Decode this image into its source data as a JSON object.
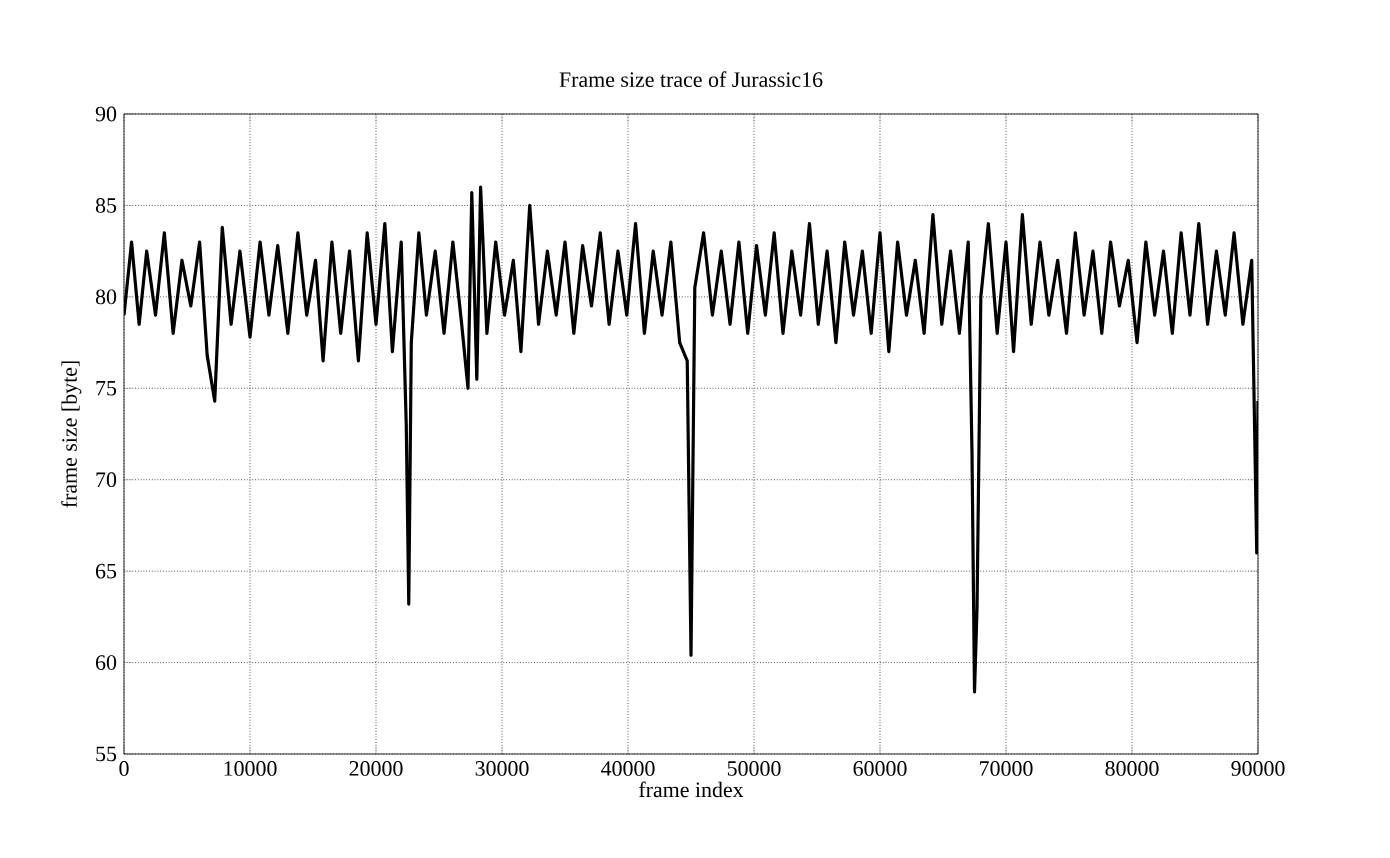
{
  "chart_data": {
    "type": "line",
    "title": "Frame size trace of Jurassic16",
    "xlabel": "frame index",
    "ylabel": "frame size [byte]",
    "xlim": [
      0,
      90000
    ],
    "ylim": [
      55,
      90
    ],
    "xticks": [
      0,
      10000,
      20000,
      30000,
      40000,
      50000,
      60000,
      70000,
      80000,
      90000
    ],
    "yticks": [
      55,
      60,
      65,
      70,
      75,
      80,
      85,
      90
    ],
    "grid": true,
    "color": "#000000",
    "x": [
      0,
      600,
      1200,
      1800,
      2500,
      3200,
      3900,
      4600,
      5300,
      6000,
      6600,
      7200,
      7800,
      8500,
      9200,
      10000,
      10800,
      11500,
      12200,
      13000,
      13800,
      14500,
      15200,
      15800,
      16500,
      17200,
      17900,
      18600,
      19300,
      20000,
      20700,
      21300,
      22000,
      22400,
      22600,
      22800,
      23400,
      24000,
      24700,
      25400,
      26100,
      26800,
      27300,
      27600,
      28000,
      28300,
      28800,
      29500,
      30200,
      30900,
      31500,
      32200,
      32900,
      33600,
      34300,
      35000,
      35700,
      36400,
      37100,
      37800,
      38500,
      39200,
      39900,
      40600,
      41300,
      42000,
      42700,
      43400,
      44100,
      44700,
      45000,
      45300,
      46000,
      46700,
      47400,
      48100,
      48800,
      49500,
      50200,
      50900,
      51600,
      52300,
      53000,
      53700,
      54400,
      55100,
      55800,
      56500,
      57200,
      57900,
      58600,
      59300,
      60000,
      60700,
      61400,
      62100,
      62800,
      63500,
      64200,
      64900,
      65600,
      66300,
      67000,
      67300,
      67500,
      67700,
      68000,
      68600,
      69300,
      70000,
      70600,
      71300,
      72000,
      72700,
      73400,
      74100,
      74800,
      75500,
      76200,
      76900,
      77600,
      78300,
      79000,
      79700,
      80400,
      81100,
      81800,
      82500,
      83200,
      83900,
      84600,
      85300,
      86000,
      86700,
      87400,
      88100,
      88800,
      89500,
      89900,
      90000
    ],
    "values": [
      79,
      83,
      78.5,
      82.5,
      79,
      83.5,
      78,
      82,
      79.5,
      83,
      76.8,
      74.3,
      83.8,
      78.5,
      82.5,
      77.8,
      83,
      79,
      82.8,
      78,
      83.5,
      79,
      82,
      76.5,
      83,
      78,
      82.5,
      76.5,
      83.5,
      78.5,
      84,
      77,
      83,
      73,
      63.2,
      77.5,
      83.5,
      79,
      82.5,
      78,
      83,
      78.5,
      75,
      85.7,
      75.5,
      86,
      78,
      83,
      79,
      82,
      77,
      85,
      78.5,
      82.5,
      79,
      83,
      78,
      82.8,
      79.5,
      83.5,
      78.5,
      82.5,
      79,
      84,
      78,
      82.5,
      79,
      83,
      77.5,
      76.5,
      60.4,
      80.5,
      83.5,
      79,
      82.5,
      78.5,
      83,
      78,
      82.8,
      79,
      83.5,
      78,
      82.5,
      79,
      84,
      78.5,
      82.5,
      77.5,
      83,
      79,
      82.5,
      78,
      83.5,
      77,
      83,
      79,
      82,
      78,
      84.5,
      78.5,
      82.5,
      78,
      83,
      71.5,
      58.4,
      63,
      80,
      84,
      78,
      83,
      77,
      84.5,
      78.5,
      83,
      79,
      82,
      78,
      83.5,
      79,
      82.5,
      78,
      83,
      79.5,
      82,
      77.5,
      83,
      79,
      82.5,
      78,
      83.5,
      79,
      84,
      78.5,
      82.5,
      79,
      83.5,
      78.5,
      82,
      66,
      74.3
    ]
  }
}
